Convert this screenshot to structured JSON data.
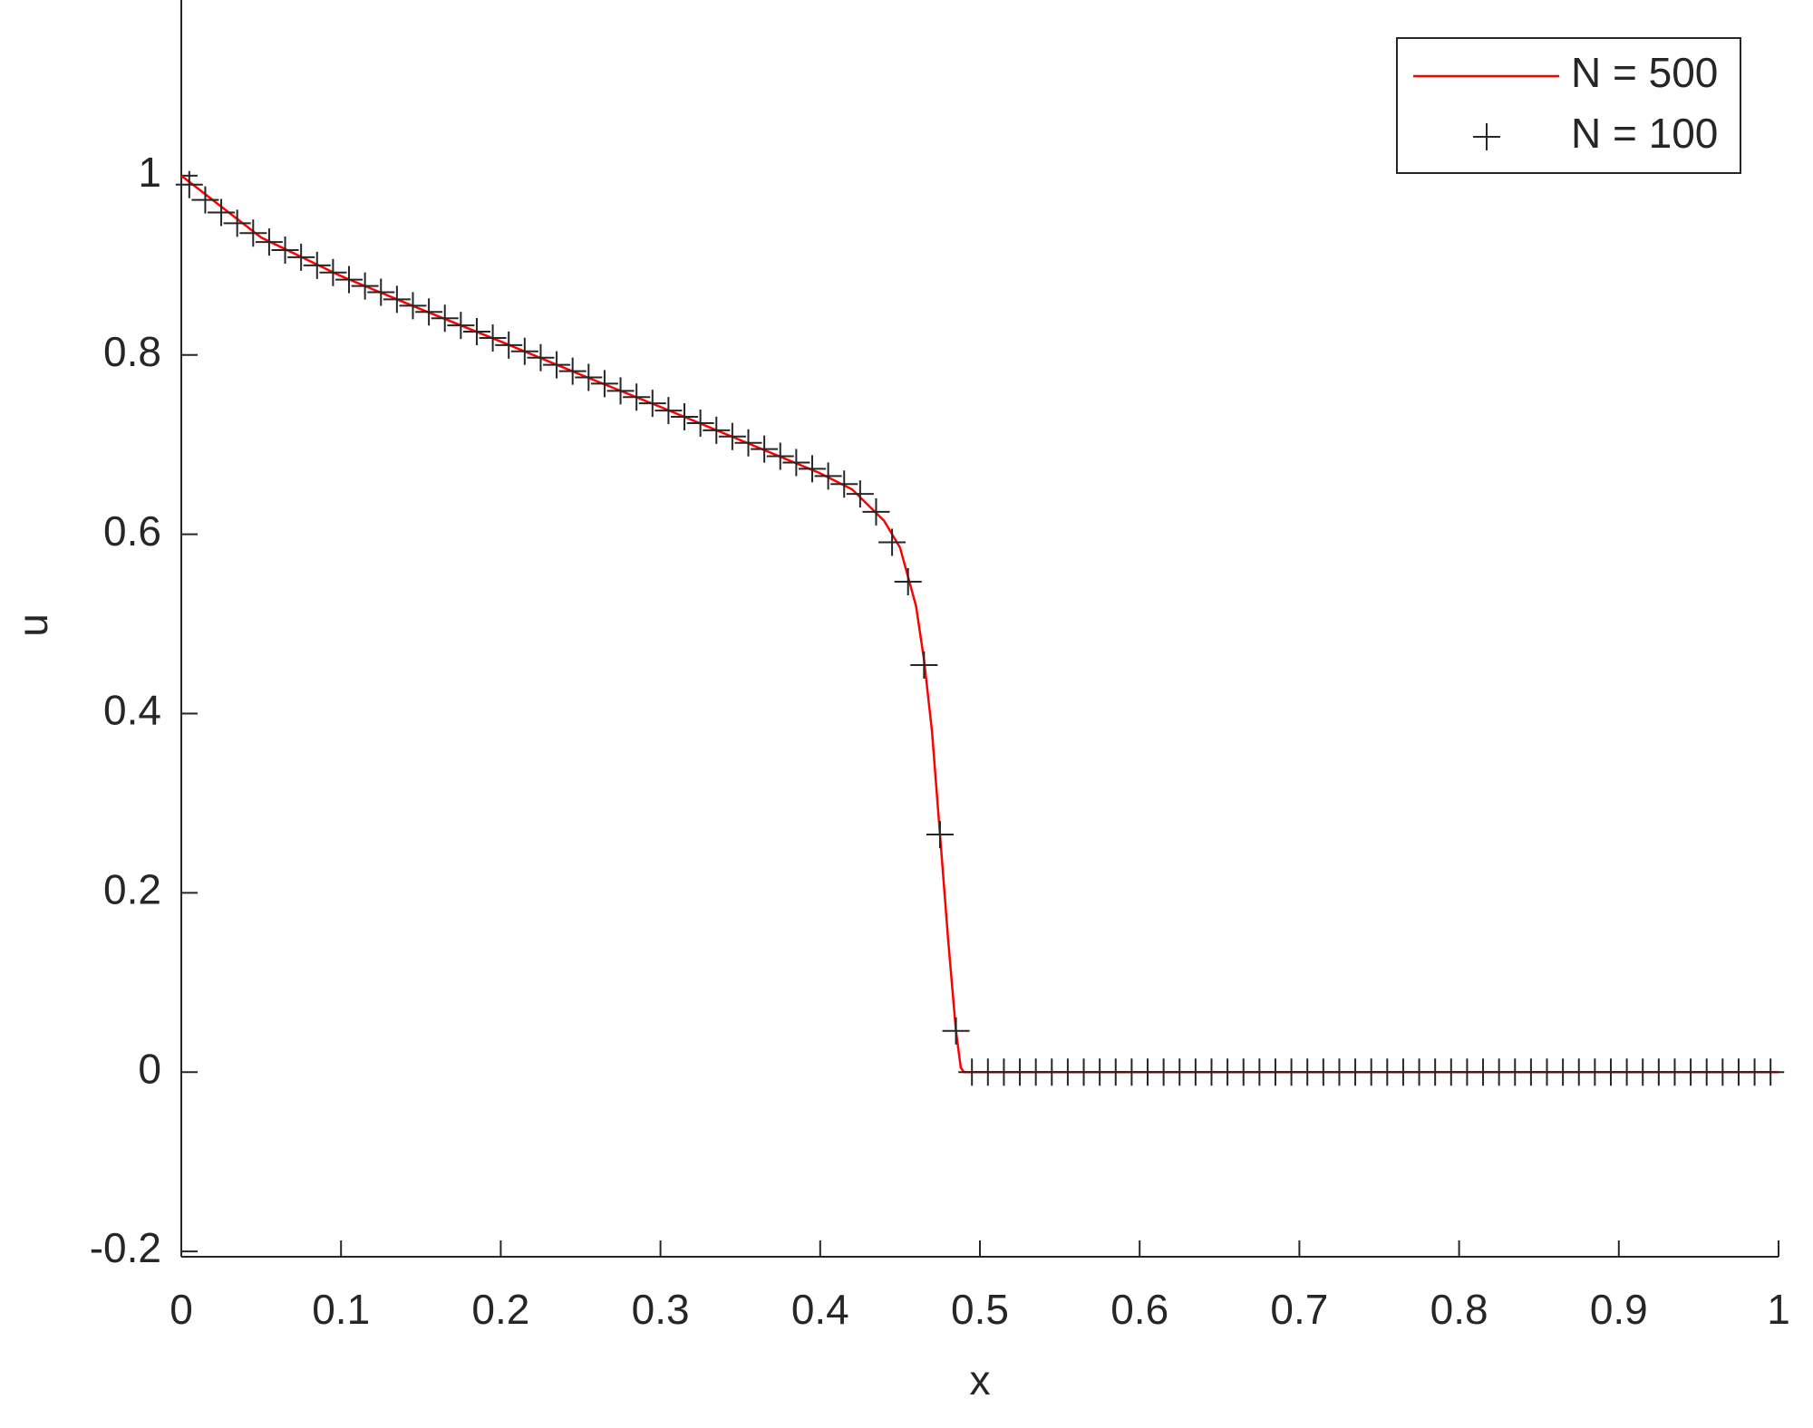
{
  "chart_data": {
    "type": "line",
    "xlabel": "x",
    "ylabel": "u",
    "xlim": [
      0,
      1
    ],
    "ylim": [
      -0.206,
      1.196
    ],
    "xticks": [
      0,
      0.1,
      0.2,
      0.3,
      0.4,
      0.5,
      0.6,
      0.7,
      0.8,
      0.9,
      1
    ],
    "yticks": [
      -0.2,
      0,
      0.2,
      0.4,
      0.6,
      0.8,
      1
    ],
    "legend": "northeast",
    "series": [
      {
        "name": "N = 500",
        "color": "#ff0000",
        "marker": "none",
        "x": [
          0,
          0.05,
          0.1,
          0.15,
          0.2,
          0.25,
          0.3,
          0.35,
          0.4,
          0.42,
          0.44,
          0.45,
          0.46,
          0.465,
          0.47,
          0.475,
          0.48,
          0.485,
          0.488,
          0.49,
          1
        ],
        "values": [
          1,
          0.931,
          0.888,
          0.851,
          0.815,
          0.778,
          0.742,
          0.705,
          0.668,
          0.65,
          0.615,
          0.585,
          0.52,
          0.46,
          0.38,
          0.265,
          0.15,
          0.046,
          0.005,
          0,
          0
        ]
      },
      {
        "name": "N = 100",
        "color": "#262626",
        "marker": "plus",
        "x": [
          0.005,
          0.015,
          0.025,
          0.035,
          0.045,
          0.055,
          0.065,
          0.075,
          0.085,
          0.095,
          0.105,
          0.115,
          0.125,
          0.135,
          0.145,
          0.155,
          0.165,
          0.175,
          0.185,
          0.195,
          0.205,
          0.215,
          0.225,
          0.235,
          0.245,
          0.255,
          0.265,
          0.275,
          0.285,
          0.295,
          0.305,
          0.315,
          0.325,
          0.335,
          0.345,
          0.355,
          0.365,
          0.375,
          0.385,
          0.395,
          0.405,
          0.415,
          0.425,
          0.435,
          0.445,
          0.455,
          0.465,
          0.475,
          0.485,
          0.495,
          0.505,
          0.515,
          0.525,
          0.535,
          0.545,
          0.555,
          0.565,
          0.575,
          0.585,
          0.595,
          0.605,
          0.615,
          0.625,
          0.635,
          0.645,
          0.655,
          0.665,
          0.675,
          0.685,
          0.695,
          0.705,
          0.715,
          0.725,
          0.735,
          0.745,
          0.755,
          0.765,
          0.775,
          0.785,
          0.795,
          0.805,
          0.815,
          0.825,
          0.835,
          0.845,
          0.855,
          0.865,
          0.875,
          0.885,
          0.895,
          0.905,
          0.915,
          0.925,
          0.935,
          0.945,
          0.955,
          0.965,
          0.975,
          0.985,
          0.995
        ],
        "values": [
          0.99,
          0.973,
          0.959,
          0.947,
          0.936,
          0.926,
          0.917,
          0.909,
          0.9,
          0.892,
          0.884,
          0.877,
          0.87,
          0.862,
          0.855,
          0.848,
          0.841,
          0.833,
          0.826,
          0.819,
          0.811,
          0.804,
          0.797,
          0.789,
          0.782,
          0.775,
          0.768,
          0.76,
          0.753,
          0.746,
          0.738,
          0.731,
          0.724,
          0.716,
          0.709,
          0.702,
          0.695,
          0.687,
          0.68,
          0.673,
          0.665,
          0.656,
          0.645,
          0.625,
          0.591,
          0.547,
          0.454,
          0.265,
          0.046,
          0,
          0,
          0,
          0,
          0,
          0,
          0,
          0,
          0,
          0,
          0,
          0,
          0,
          0,
          0,
          0,
          0,
          0,
          0,
          0,
          0,
          0,
          0,
          0,
          0,
          0,
          0,
          0,
          0,
          0,
          0,
          0,
          0,
          0,
          0,
          0,
          0,
          0,
          0,
          0,
          0,
          0,
          0,
          0,
          0,
          0,
          0,
          0,
          0,
          0,
          0
        ]
      }
    ]
  }
}
